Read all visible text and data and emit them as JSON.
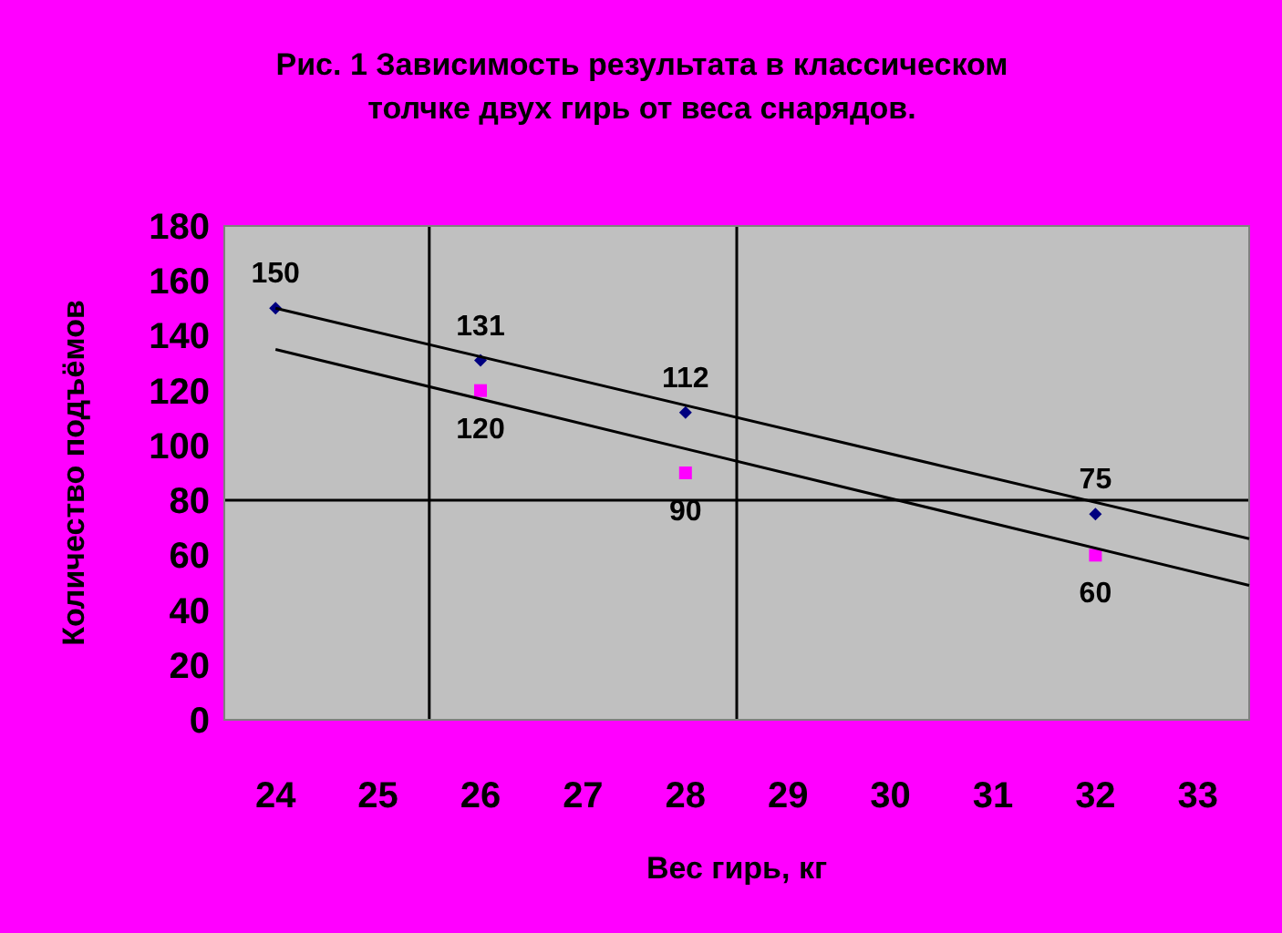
{
  "chart_data": {
    "type": "scatter",
    "title": "Рис. 1 Зависимость результата в классическом\nтолчке двух гирь от веса снарядов.",
    "xlabel": "Вес гирь, кг",
    "ylabel": "Количество подъёмов",
    "xlim": [
      23.5,
      33.5
    ],
    "xticks": [
      24,
      25,
      26,
      27,
      28,
      29,
      30,
      31,
      32,
      33
    ],
    "ylim": [
      0,
      180
    ],
    "yticks": [
      0,
      20,
      40,
      60,
      80,
      100,
      120,
      140,
      160,
      180
    ],
    "ref_lines": [
      {
        "axis": "y",
        "value": 80,
        "color": "#000000"
      },
      {
        "axis": "x",
        "value": 25.5,
        "color": "#000000"
      },
      {
        "axis": "x",
        "value": 28.5,
        "color": "#000000"
      }
    ],
    "series": [
      {
        "type": "scatter",
        "color": "#000080",
        "marker": "diamond",
        "x": [
          24,
          26,
          28,
          32
        ],
        "values": [
          150,
          131,
          112,
          75
        ],
        "value_labels": [
          "150",
          "131",
          "112",
          "75"
        ]
      },
      {
        "type": "scatter",
        "color": "#ff00ff",
        "marker": "square",
        "x": [
          26,
          28,
          32
        ],
        "values": [
          120,
          90,
          60
        ],
        "value_labels": [
          "120",
          "90",
          "60"
        ]
      },
      {
        "type": "line",
        "color": "#000000",
        "marker": "none",
        "x": [
          24,
          33.5
        ],
        "values": [
          150,
          66
        ]
      },
      {
        "type": "line",
        "color": "#000000",
        "marker": "none",
        "x": [
          24,
          33.5
        ],
        "values": [
          135,
          49
        ]
      }
    ]
  }
}
